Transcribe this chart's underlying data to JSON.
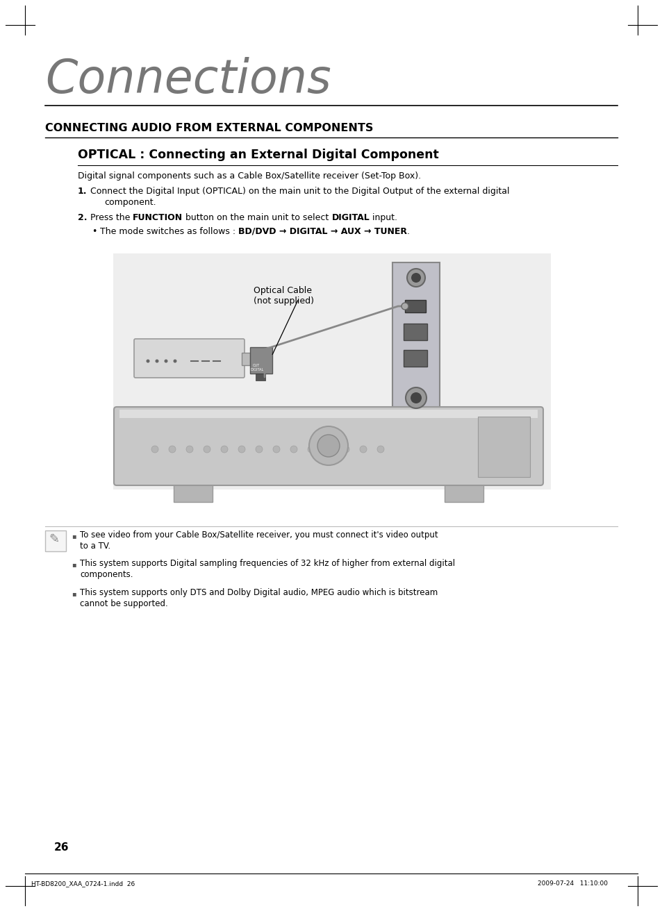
{
  "bg_color": "#ffffff",
  "page_num": "26",
  "footer_left": "HT-BD8200_XAA_0724-1.indd  26",
  "footer_right": "2009-07-24   11:10:00",
  "title_connections": "Connections",
  "section_title": "CONNECTING AUDIO FROM EXTERNAL COMPONENTS",
  "subsection_title": "OPTICAL : Connecting an External Digital Component",
  "intro_text": "Digital signal components such as a Cable Box/Satellite receiver (Set-Top Box).",
  "step1_line1": "Connect the Digital Input (OPTICAL) on the main unit to the Digital Output of the external digital",
  "step1_line2": "component.",
  "step2_pre": "Press the ",
  "step2_bold1": "FUNCTION",
  "step2_mid": " button on the main unit to select ",
  "step2_bold2": "DIGITAL",
  "step2_end": " input.",
  "bullet_pre": "The mode switches as follows : ",
  "bullet_bold": "BD/DVD → DIGITAL → AUX → TUNER",
  "bullet_end": ".",
  "note1_line1": "To see video from your Cable Box/Satellite receiver, you must connect it's video output",
  "note1_line2": "to a TV.",
  "note2_line1": "This system supports Digital sampling frequencies of 32 kHz of higher from external digital",
  "note2_line2": "components.",
  "note3_line1": "This system supports only DTS and Dolby Digital audio, MPEG audio which is bitstream",
  "note3_line2": "cannot be supported.",
  "optical_label_line1": "Optical Cable",
  "optical_label_line2": "(not supplied)"
}
